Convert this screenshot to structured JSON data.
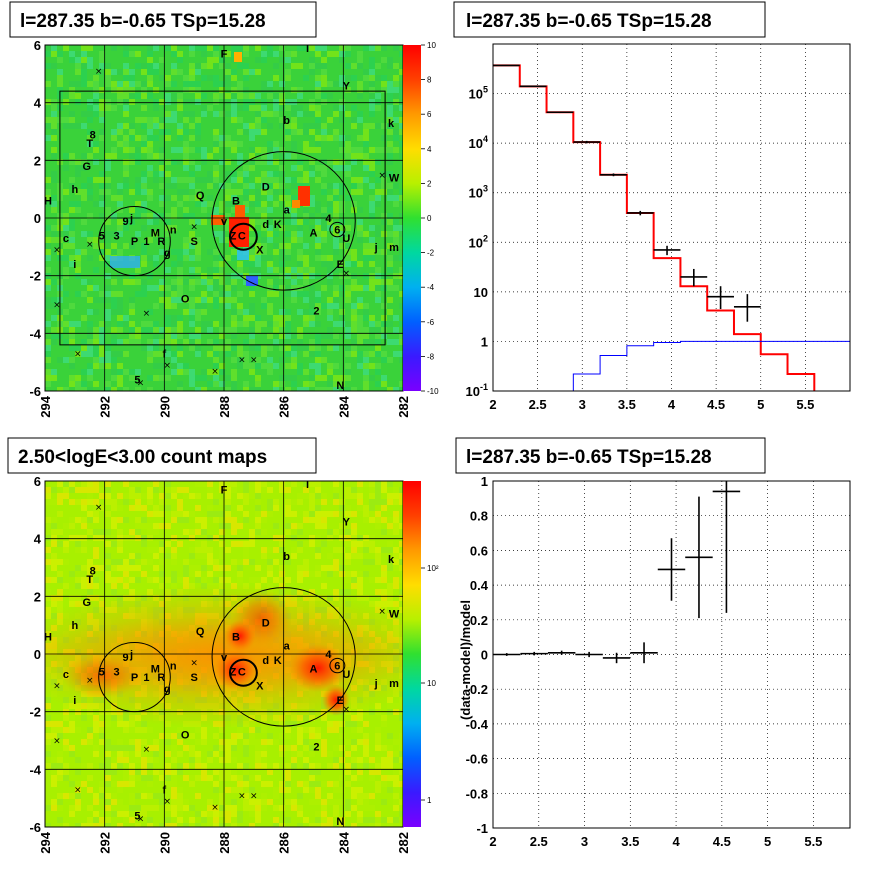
{
  "titles": {
    "map1": "l=287.35 b=-0.65 TSp=15.28",
    "spectrum": "l=287.35 b=-0.65 TSp=15.28",
    "map2": "2.50<logE<3.00 count maps",
    "residual": "l=287.35 b=-0.65 TSp=15.28"
  },
  "map_axes": {
    "x_ticks": [
      "294",
      "292",
      "290",
      "288",
      "286",
      "284",
      "282"
    ],
    "y_ticks": [
      "6",
      "4",
      "2",
      "0",
      "-2",
      "-4",
      "-6"
    ],
    "xlim": [
      294,
      282
    ],
    "ylim": [
      -6,
      6
    ]
  },
  "colorbar1": {
    "ticks": [
      "10",
      "8",
      "6",
      "4",
      "2",
      "0",
      "-2",
      "-4",
      "-6",
      "-8",
      "-10"
    ],
    "range": [
      -10,
      10
    ]
  },
  "colorbar2": {
    "ticks": [
      "10²",
      "10",
      "1"
    ],
    "scale": "log"
  },
  "source_labels": [
    {
      "t": "F",
      "l": 288,
      "b": 5.7
    },
    {
      "t": "l",
      "l": 285.2,
      "b": 5.9
    },
    {
      "t": "Y",
      "l": 283.9,
      "b": 4.6
    },
    {
      "t": "b",
      "l": 285.9,
      "b": 3.4
    },
    {
      "t": "k",
      "l": 282.4,
      "b": 3.3
    },
    {
      "t": "8",
      "l": 292.4,
      "b": 2.9
    },
    {
      "t": "T",
      "l": 292.5,
      "b": 2.6
    },
    {
      "t": "G",
      "l": 292.6,
      "b": 1.8
    },
    {
      "t": "W",
      "l": 282.3,
      "b": 1.4
    },
    {
      "t": "D",
      "l": 286.6,
      "b": 1.1
    },
    {
      "t": "h",
      "l": 293.0,
      "b": 1.0
    },
    {
      "t": "Q",
      "l": 288.8,
      "b": 0.8
    },
    {
      "t": "B",
      "l": 287.6,
      "b": 0.6
    },
    {
      "t": "H",
      "l": 293.9,
      "b": 0.6
    },
    {
      "t": "a",
      "l": 285.9,
      "b": 0.3
    },
    {
      "t": "4",
      "l": 284.5,
      "b": 0.0
    },
    {
      "t": "v",
      "l": 288.0,
      "b": -0.1
    },
    {
      "t": "d",
      "l": 286.6,
      "b": -0.2
    },
    {
      "t": "K",
      "l": 286.2,
      "b": -0.2
    },
    {
      "t": "9",
      "l": 291.3,
      "b": -0.1
    },
    {
      "t": "j",
      "l": 291.1,
      "b": 0.0
    },
    {
      "t": "n",
      "l": 289.7,
      "b": -0.4
    },
    {
      "t": "A",
      "l": 285.0,
      "b": -0.5
    },
    {
      "t": "6",
      "l": 284.2,
      "b": -0.4
    },
    {
      "t": "c",
      "l": 293.3,
      "b": -0.7
    },
    {
      "t": "5",
      "l": 292.1,
      "b": -0.6
    },
    {
      "t": "3",
      "l": 291.6,
      "b": -0.6
    },
    {
      "t": "P",
      "l": 291.0,
      "b": -0.8
    },
    {
      "t": "1",
      "l": 290.6,
      "b": -0.8
    },
    {
      "t": "M",
      "l": 290.3,
      "b": -0.5
    },
    {
      "t": "R",
      "l": 290.1,
      "b": -0.8
    },
    {
      "t": "S",
      "l": 289.0,
      "b": -0.8
    },
    {
      "t": "Z",
      "l": 287.7,
      "b": -0.6
    },
    {
      "t": "C",
      "l": 287.4,
      "b": -0.6
    },
    {
      "t": "U",
      "l": 283.9,
      "b": -0.7
    },
    {
      "t": "m",
      "l": 282.3,
      "b": -1.0
    },
    {
      "t": "j",
      "l": 282.9,
      "b": -1.0
    },
    {
      "t": "g",
      "l": 289.9,
      "b": -1.2
    },
    {
      "t": "X",
      "l": 286.8,
      "b": -1.1
    },
    {
      "t": "i",
      "l": 293.0,
      "b": -1.6
    },
    {
      "t": "E",
      "l": 284.1,
      "b": -1.6
    },
    {
      "t": "O",
      "l": 289.3,
      "b": -2.8
    },
    {
      "t": "2",
      "l": 284.9,
      "b": -3.2
    },
    {
      "t": "f",
      "l": 290.0,
      "b": -4.7
    },
    {
      "t": "5",
      "l": 290.9,
      "b": -5.6
    },
    {
      "t": "N",
      "l": 284.1,
      "b": -5.8
    }
  ],
  "crosses": [
    [
      292.2,
      5.1
    ],
    [
      282.7,
      1.5
    ],
    [
      293.6,
      -1.1
    ],
    [
      292.5,
      -0.9
    ],
    [
      293.6,
      -3.0
    ],
    [
      292.9,
      -4.7
    ],
    [
      290.6,
      -3.3
    ],
    [
      290.8,
      -5.7
    ],
    [
      289.9,
      -5.1
    ],
    [
      288.3,
      -5.3
    ],
    [
      287.4,
      -4.9
    ],
    [
      287.0,
      -4.9
    ],
    [
      283.9,
      -1.9
    ],
    [
      289.0,
      -0.3
    ]
  ],
  "circles": [
    {
      "l": 291.0,
      "b": -0.8,
      "r": 1.2,
      "w": 1
    },
    {
      "l": 286.0,
      "b": -0.1,
      "r": 2.4,
      "w": 1
    },
    {
      "l": 287.35,
      "b": -0.65,
      "r": 0.45,
      "w": 2
    },
    {
      "l": 284.2,
      "b": -0.4,
      "r": 0.25,
      "w": 1
    }
  ],
  "roi_box": {
    "l1": 293.5,
    "l2": 282.6,
    "b1": -4.4,
    "b2": 4.4
  },
  "chart_data": [
    {
      "type": "line",
      "panel": "spectrum",
      "title": "l=287.35 b=-0.65 TSp=15.28",
      "xlabel": "",
      "ylabel": "",
      "xlim": [
        2,
        6
      ],
      "ylim": [
        0.1,
        1000000
      ],
      "yscale": "log",
      "x_ticks": [
        "2",
        "2.5",
        "3",
        "3.5",
        "4",
        "4.5",
        "5",
        "5.5"
      ],
      "y_ticks": [
        "10^-1",
        "1",
        "10",
        "10^2",
        "10^3",
        "10^4",
        "10^5"
      ],
      "grid": true,
      "bin_edges": [
        2.0,
        2.3,
        2.6,
        2.9,
        3.2,
        3.5,
        3.8,
        4.1,
        4.4,
        4.7,
        5.0,
        5.3,
        5.6,
        5.9,
        6.2
      ],
      "series": [
        {
          "name": "",
          "color": "#ff0000",
          "values": [
            370000,
            140000,
            42000,
            10500,
            2300,
            390,
            48,
            13,
            4.2,
            1.4,
            0.55,
            0.22,
            0.09,
            0.05
          ]
        },
        {
          "name": "",
          "color": "#0000ff",
          "values": [
            null,
            null,
            0.1,
            0.22,
            0.52,
            0.82,
            0.95,
            1.0,
            1.0,
            1.0,
            1.0,
            1.0,
            1.0,
            1.0
          ]
        },
        {
          "name": "",
          "color": "#000000",
          "points": [
            {
              "x": 2.15,
              "y": 370000,
              "yerr": [
                8000,
                8000
              ],
              "xerr": 0.15
            },
            {
              "x": 2.45,
              "y": 140000,
              "yerr": [
                4000,
                4000
              ],
              "xerr": 0.15
            },
            {
              "x": 2.75,
              "y": 42000,
              "yerr": [
                1500,
                1500
              ],
              "xerr": 0.15
            },
            {
              "x": 3.05,
              "y": 10500,
              "yerr": [
                600,
                600
              ],
              "xerr": 0.15
            },
            {
              "x": 3.35,
              "y": 2300,
              "yerr": [
                150,
                150
              ],
              "xerr": 0.15
            },
            {
              "x": 3.65,
              "y": 390,
              "yerr": [
                40,
                40
              ],
              "xerr": 0.15
            },
            {
              "x": 3.95,
              "y": 70,
              "yerr": [
                15,
                15
              ],
              "xerr": 0.15
            },
            {
              "x": 4.25,
              "y": 20,
              "yerr": [
                7,
                9
              ],
              "xerr": 0.15
            },
            {
              "x": 4.55,
              "y": 8,
              "yerr": [
                3.5,
                5
              ],
              "xerr": 0.15
            },
            {
              "x": 4.85,
              "y": 5,
              "yerr": [
                2.5,
                4
              ],
              "xerr": 0.15
            }
          ]
        }
      ]
    },
    {
      "type": "scatter",
      "panel": "residual",
      "title": "l=287.35 b=-0.65 TSp=15.28",
      "xlabel": "",
      "ylabel": "(data-model)/model",
      "xlim": [
        2,
        5.9
      ],
      "ylim": [
        -1,
        1
      ],
      "x_ticks": [
        "2",
        "2.5",
        "3",
        "3.5",
        "4",
        "4.5",
        "5",
        "5.5"
      ],
      "y_ticks": [
        "1",
        "0.8",
        "0.6",
        "0.4",
        "0.2",
        "0",
        "-0.2",
        "-0.4",
        "-0.6",
        "-0.8",
        "-1"
      ],
      "grid": true,
      "points": [
        {
          "x": 2.15,
          "y": 0.0,
          "xerr": 0.15,
          "yerr": 0.008
        },
        {
          "x": 2.45,
          "y": 0.005,
          "xerr": 0.15,
          "yerr": 0.01
        },
        {
          "x": 2.75,
          "y": 0.01,
          "xerr": 0.15,
          "yerr": 0.012
        },
        {
          "x": 3.05,
          "y": 0.0,
          "xerr": 0.15,
          "yerr": 0.015
        },
        {
          "x": 3.35,
          "y": -0.02,
          "xerr": 0.15,
          "yerr": 0.03
        },
        {
          "x": 3.65,
          "y": 0.01,
          "xerr": 0.15,
          "yerr": 0.06
        },
        {
          "x": 3.95,
          "y": 0.49,
          "xerr": 0.15,
          "yerr": 0.18
        },
        {
          "x": 4.25,
          "y": 0.56,
          "xerr": 0.15,
          "yerr": 0.35
        },
        {
          "x": 4.55,
          "y": 0.94,
          "xerr": 0.15,
          "yerr": 0.7
        }
      ]
    }
  ]
}
